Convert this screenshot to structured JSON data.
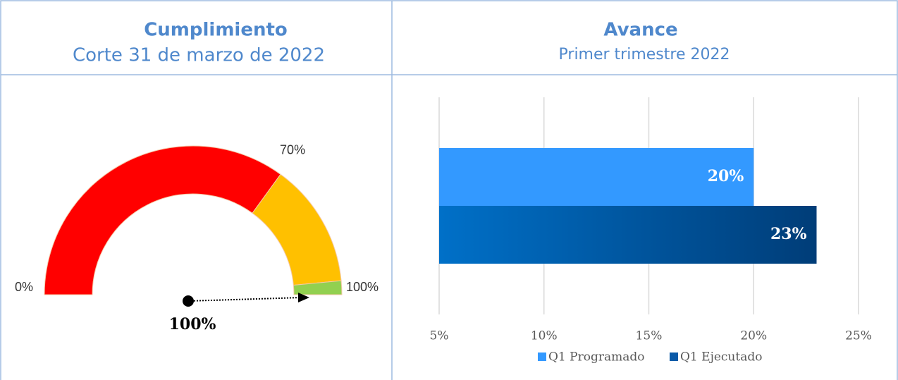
{
  "chart_data": [
    {
      "type": "gauge",
      "title": "Cumplimiento",
      "subtitle": "Corte 31 de marzo de 2022",
      "range": [
        0,
        100
      ],
      "bands": [
        {
          "from": 0,
          "to": 70,
          "color": "#ff0000"
        },
        {
          "from": 70,
          "to": 97,
          "color": "#ffc000"
        },
        {
          "from": 97,
          "to": 100,
          "color": "#92d050"
        }
      ],
      "ticks": [
        {
          "value": 0,
          "label": "0%"
        },
        {
          "value": 70,
          "label": "70%"
        },
        {
          "value": 100,
          "label": "100%"
        }
      ],
      "value": 100,
      "value_label": "100%"
    },
    {
      "type": "bar",
      "orientation": "horizontal",
      "title": "Avance",
      "subtitle": "Primer trimestre 2022",
      "series": [
        {
          "name": "Q1 Programado",
          "color": "#3399ff",
          "values": [
            20
          ],
          "value_labels": [
            "20%"
          ]
        },
        {
          "name": "Q1 Ejecutado",
          "color": "#0a5aa8",
          "gradient": [
            "#0070c8",
            "#003d78"
          ],
          "values": [
            23
          ],
          "value_labels": [
            "23%"
          ]
        }
      ],
      "xlim": [
        5,
        25
      ],
      "xticks": [
        {
          "value": 5,
          "label": "5%"
        },
        {
          "value": 10,
          "label": "10%"
        },
        {
          "value": 15,
          "label": "15%"
        },
        {
          "value": 20,
          "label": "20%"
        },
        {
          "value": 25,
          "label": "25%"
        }
      ],
      "grid": true,
      "legend": "bottom"
    }
  ]
}
